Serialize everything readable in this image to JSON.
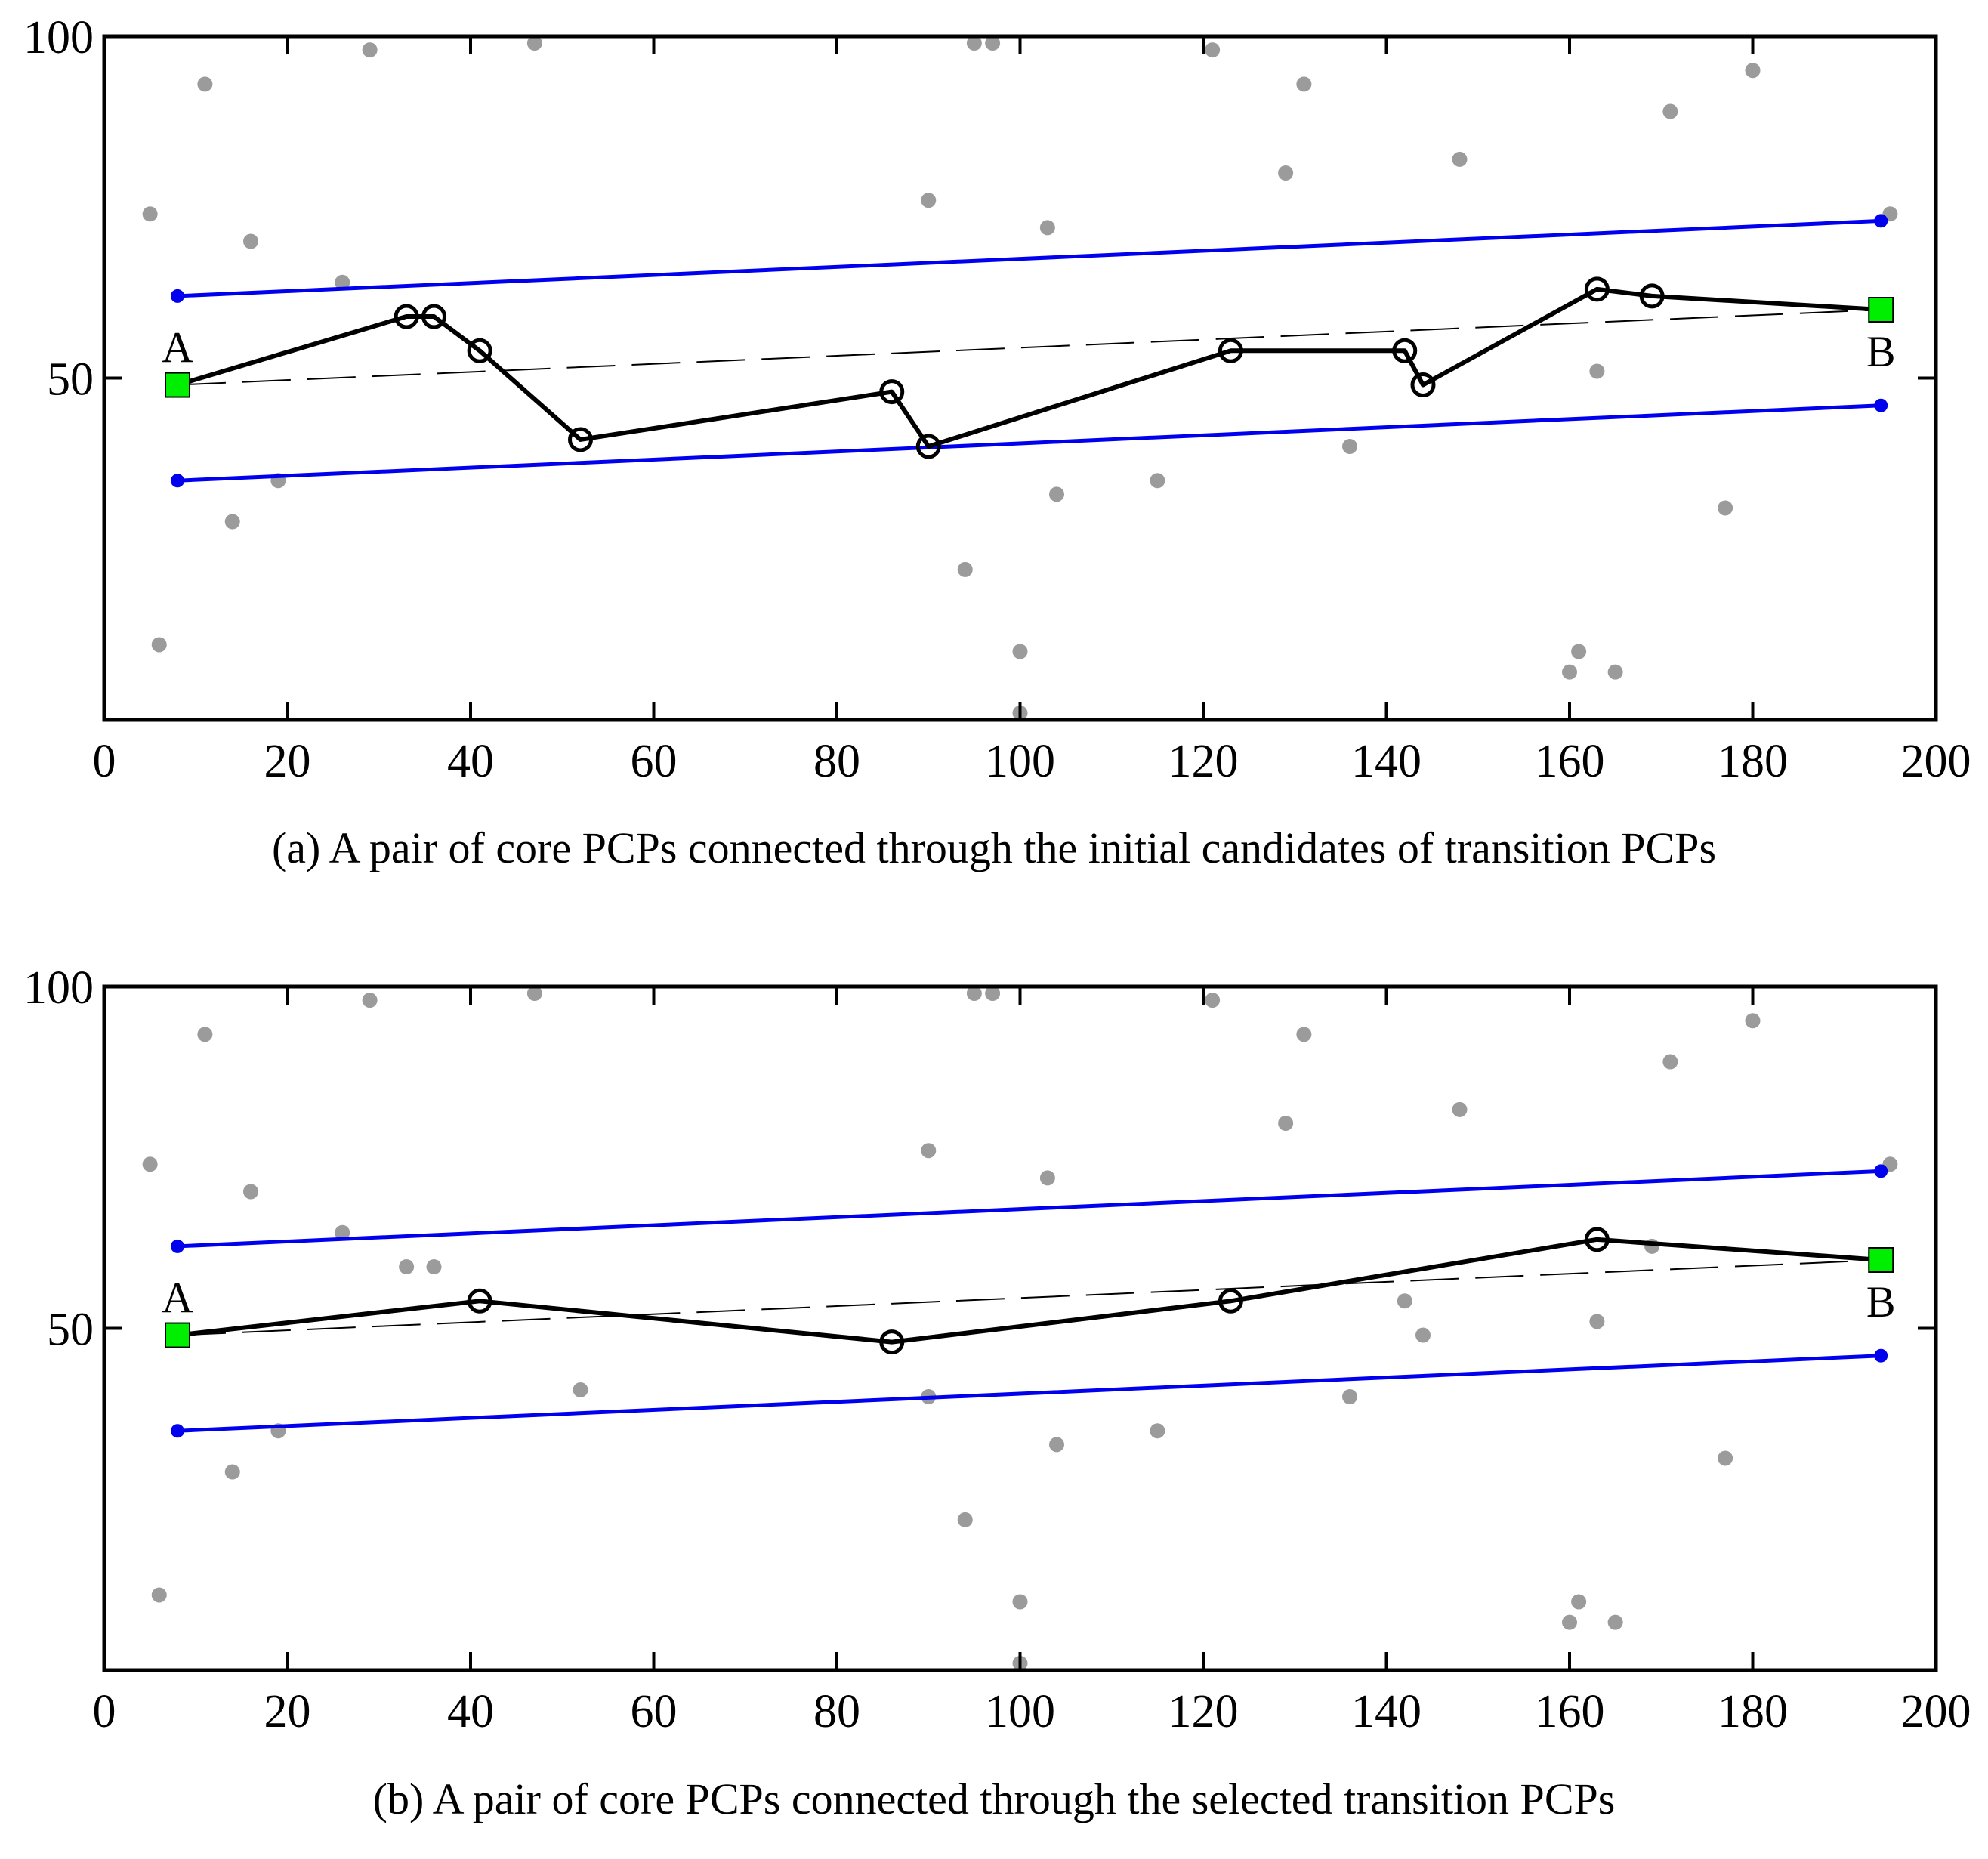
{
  "chart_data": [
    {
      "panel": "a",
      "type": "scatter",
      "caption": "(a) A pair of core PCPs connected through the initial candidates of transition PCPs",
      "xlim": [
        0,
        200
      ],
      "ylim": [
        0,
        100
      ],
      "x_ticks": [
        0,
        20,
        40,
        60,
        80,
        100,
        120,
        140,
        160,
        180,
        200
      ],
      "y_tick_labels": [
        {
          "value": 50,
          "label": "50"
        },
        {
          "value": 100,
          "label": "100"
        }
      ],
      "grid": false,
      "colors": {
        "candidates": "#9b9b9b",
        "boundary": "#0000ee",
        "endpoint": "#00ee00",
        "path": "#000000"
      },
      "candidate_points": [
        [
          5,
          74
        ],
        [
          6,
          11
        ],
        [
          11,
          93
        ],
        [
          14,
          29
        ],
        [
          16,
          70
        ],
        [
          19,
          35
        ],
        [
          26,
          64
        ],
        [
          29,
          98
        ],
        [
          47,
          99
        ],
        [
          90,
          76
        ],
        [
          94,
          22
        ],
        [
          95,
          99
        ],
        [
          97,
          99
        ],
        [
          100,
          10
        ],
        [
          100,
          1
        ],
        [
          103,
          72
        ],
        [
          104,
          33
        ],
        [
          115,
          35
        ],
        [
          121,
          98
        ],
        [
          129,
          80
        ],
        [
          131,
          93
        ],
        [
          136,
          40
        ],
        [
          148,
          82
        ],
        [
          160,
          7
        ],
        [
          161,
          10
        ],
        [
          163,
          51
        ],
        [
          165,
          7
        ],
        [
          171,
          89
        ],
        [
          177,
          31
        ],
        [
          180,
          95
        ],
        [
          195,
          74
        ]
      ],
      "boundary_lines": [
        {
          "x": [
            8,
            194
          ],
          "y": [
            62,
            73
          ]
        },
        {
          "x": [
            8,
            194
          ],
          "y": [
            35,
            46
          ]
        }
      ],
      "reference_line": {
        "x": [
          8,
          194
        ],
        "y": [
          49,
          60
        ]
      },
      "path": {
        "x": [
          8,
          33,
          36,
          41,
          52,
          86,
          90,
          123,
          142,
          144,
          163,
          169,
          194
        ],
        "y": [
          49,
          59,
          59,
          54,
          41,
          48,
          40,
          54,
          54,
          49,
          63,
          62,
          60
        ]
      },
      "endpoints": [
        {
          "label": "A",
          "x": 8,
          "y": 49
        },
        {
          "label": "B",
          "x": 194,
          "y": 60
        }
      ]
    },
    {
      "panel": "b",
      "type": "scatter",
      "caption": "(b) A pair of core PCPs connected through the selected transition PCPs",
      "xlim": [
        0,
        200
      ],
      "ylim": [
        0,
        100
      ],
      "x_ticks": [
        0,
        20,
        40,
        60,
        80,
        100,
        120,
        140,
        160,
        180,
        200
      ],
      "y_tick_labels": [
        {
          "value": 50,
          "label": "50"
        },
        {
          "value": 100,
          "label": "100"
        }
      ],
      "grid": false,
      "colors": {
        "candidates": "#9b9b9b",
        "boundary": "#0000ee",
        "endpoint": "#00ee00",
        "path": "#000000"
      },
      "candidate_points": [
        [
          5,
          74
        ],
        [
          6,
          11
        ],
        [
          11,
          93
        ],
        [
          14,
          29
        ],
        [
          16,
          70
        ],
        [
          19,
          35
        ],
        [
          26,
          64
        ],
        [
          29,
          98
        ],
        [
          33,
          59
        ],
        [
          36,
          59
        ],
        [
          47,
          99
        ],
        [
          52,
          41
        ],
        [
          90,
          40
        ],
        [
          90,
          76
        ],
        [
          94,
          22
        ],
        [
          95,
          99
        ],
        [
          97,
          99
        ],
        [
          100,
          10
        ],
        [
          100,
          1
        ],
        [
          103,
          72
        ],
        [
          104,
          33
        ],
        [
          115,
          35
        ],
        [
          121,
          98
        ],
        [
          129,
          80
        ],
        [
          131,
          93
        ],
        [
          136,
          40
        ],
        [
          142,
          54
        ],
        [
          144,
          49
        ],
        [
          148,
          82
        ],
        [
          160,
          7
        ],
        [
          161,
          10
        ],
        [
          163,
          51
        ],
        [
          165,
          7
        ],
        [
          169,
          62
        ],
        [
          171,
          89
        ],
        [
          177,
          31
        ],
        [
          180,
          95
        ],
        [
          195,
          74
        ]
      ],
      "boundary_lines": [
        {
          "x": [
            8,
            194
          ],
          "y": [
            62,
            73
          ]
        },
        {
          "x": [
            8,
            194
          ],
          "y": [
            35,
            46
          ]
        }
      ],
      "reference_line": {
        "x": [
          8,
          194
        ],
        "y": [
          49,
          60
        ]
      },
      "path": {
        "x": [
          8,
          41,
          86,
          123,
          163,
          194
        ],
        "y": [
          49,
          54,
          48,
          54,
          63,
          60
        ]
      },
      "endpoints": [
        {
          "label": "A",
          "x": 8,
          "y": 49
        },
        {
          "label": "B",
          "x": 194,
          "y": 60
        }
      ]
    }
  ]
}
